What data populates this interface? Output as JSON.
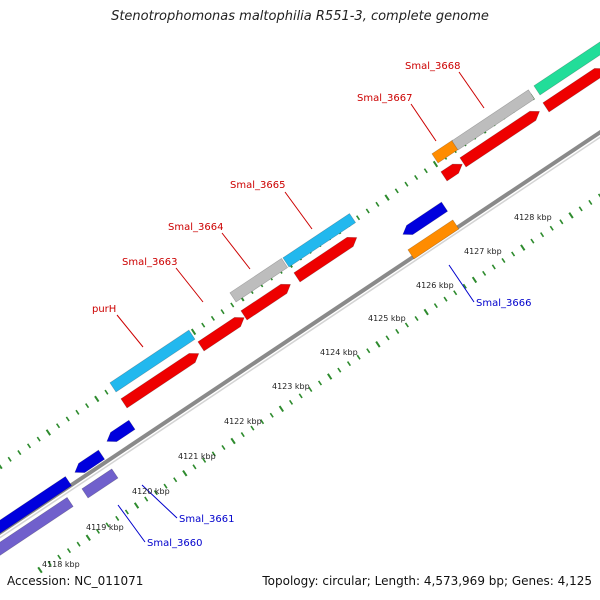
{
  "title": "Stenotrophomonas maltophilia R551-3, complete genome",
  "footer": {
    "accession": "Accession: NC_011071",
    "summary": "Topology: circular; Length: 4,573,969 bp; Genes: 4,125"
  },
  "colors": {
    "backbone": "#8a8a8a",
    "tick": "#2e8b2e",
    "label_forward": "#cc0000",
    "label_reverse": "#0000cc",
    "cds": "#ee0000",
    "cyan": "#22b8ee",
    "grey": "#bdbdbd",
    "orange": "#ff8c00",
    "blue": "#0000dd",
    "purple": "#7060cc",
    "green": "#22dd99"
  },
  "scale_ticks": [
    {
      "label": "4118 kbp"
    },
    {
      "label": "4119 kbp"
    },
    {
      "label": "4120 kbp"
    },
    {
      "label": "4121 kbp"
    },
    {
      "label": "4122 kbp"
    },
    {
      "label": "4123 kbp"
    },
    {
      "label": "4124 kbp"
    },
    {
      "label": "4125 kbp"
    },
    {
      "label": "4126 kbp"
    },
    {
      "label": "4127 kbp"
    },
    {
      "label": "4128 kbp"
    }
  ],
  "gene_labels": [
    {
      "name": "purH",
      "strand": "forward"
    },
    {
      "name": "Smal_3663",
      "strand": "forward"
    },
    {
      "name": "Smal_3664",
      "strand": "forward"
    },
    {
      "name": "Smal_3665",
      "strand": "forward"
    },
    {
      "name": "Smal_3667",
      "strand": "forward"
    },
    {
      "name": "Smal_3668",
      "strand": "forward"
    },
    {
      "name": "Smal_3666",
      "strand": "reverse"
    },
    {
      "name": "Smal_3661",
      "strand": "reverse"
    },
    {
      "name": "Smal_3660",
      "strand": "reverse"
    }
  ]
}
